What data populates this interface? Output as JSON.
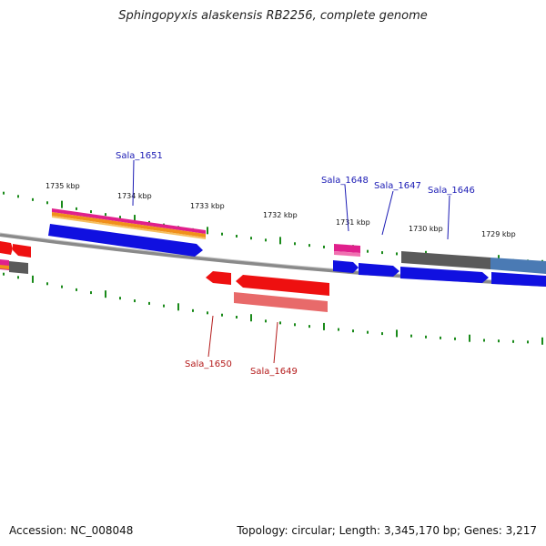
{
  "title": "Sphingopyxis alaskensis RB2256, complete genome",
  "footer": {
    "accession": "Accession: NC_008048",
    "stats": "Topology: circular; Length: 3,345,170 bp; Genes: 3,217"
  },
  "colors": {
    "backbone": "#8a8a8a",
    "tick": "#1a8a1a",
    "forward_label": "#1a1ab4",
    "reverse_label": "#b41a1a",
    "blue": "#1010e0",
    "red": "#ee1010",
    "pink_red": "#e86a6a",
    "magenta": "#e0208c",
    "orange": "#f0901a",
    "grey": "#5a5a5a",
    "steel": "#4a7ab4"
  },
  "tick_labels": [
    "1735 kbp",
    "1734 kbp",
    "1733 kbp",
    "1732 kbp",
    "1731 kbp",
    "1730 kbp",
    "1729 kbp"
  ],
  "gene_labels": {
    "forward": [
      "Sala_1651",
      "Sala_1648",
      "Sala_1647",
      "Sala_1646"
    ],
    "reverse": [
      "Sala_1650",
      "Sala_1649"
    ]
  }
}
